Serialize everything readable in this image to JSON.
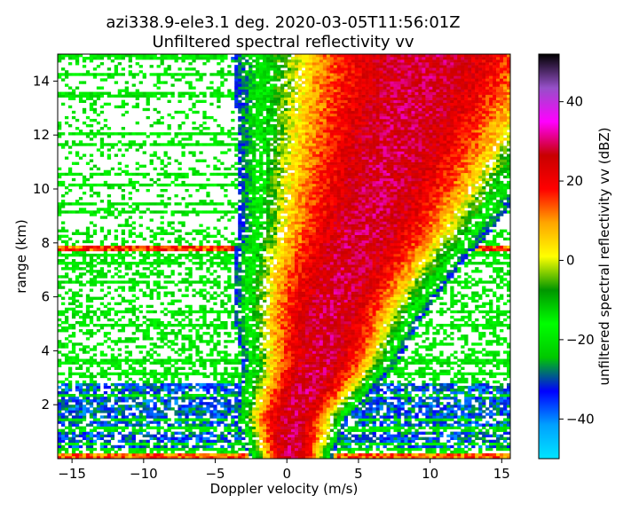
{
  "chart_data": {
    "type": "heatmap",
    "title": "azi338.9-ele3.1 deg. 2020-03-05T11:56:01Z",
    "subtitle": "Unfiltered spectral reflectivity vv",
    "xlabel": "Doppler velocity (m/s)",
    "ylabel": "range (km)",
    "xlim": [
      -16,
      15.6
    ],
    "ylim": [
      0,
      15
    ],
    "x_ticks": [
      -15,
      -10,
      -5,
      0,
      5,
      10,
      15
    ],
    "x_tick_labels": [
      "−15",
      "−10",
      "−5",
      "0",
      "5",
      "10",
      "15"
    ],
    "y_ticks": [
      2,
      4,
      6,
      8,
      10,
      12,
      14
    ],
    "y_tick_labels": [
      "2",
      "4",
      "6",
      "8",
      "10",
      "12",
      "14"
    ],
    "colorbar": {
      "label": "unfiltered spectral reflectivity vv (dBZ)",
      "vmin": -50,
      "vmax": 52,
      "ticks": [
        -40,
        -20,
        0,
        20,
        40
      ],
      "tick_labels": [
        "−40",
        "−20",
        "0",
        "20",
        "40"
      ],
      "colors": [
        "#00e5ff",
        "#00a0ff",
        "#0000ff",
        "#00c800",
        "#00ff00",
        "#009600",
        "#ffff00",
        "#ffa500",
        "#ff0000",
        "#c80000",
        "#ff00ff",
        "#9650c8",
        "#000000"
      ]
    },
    "features": {
      "main_band_velocity_vs_range": [
        [
          0.3,
          1.5
        ],
        [
          2.3,
          3.5
        ],
        [
          3.0,
          5.5
        ],
        [
          4.5,
          7.5
        ],
        [
          5.5,
          8.5
        ],
        [
          7.5,
          11.5
        ],
        [
          9.5,
          14.5
        ]
      ],
      "strong_horizontal_line_range_km": 7.8,
      "low_range_blue_region_km": [
        0.3,
        2.8
      ]
    },
    "grid": false
  }
}
